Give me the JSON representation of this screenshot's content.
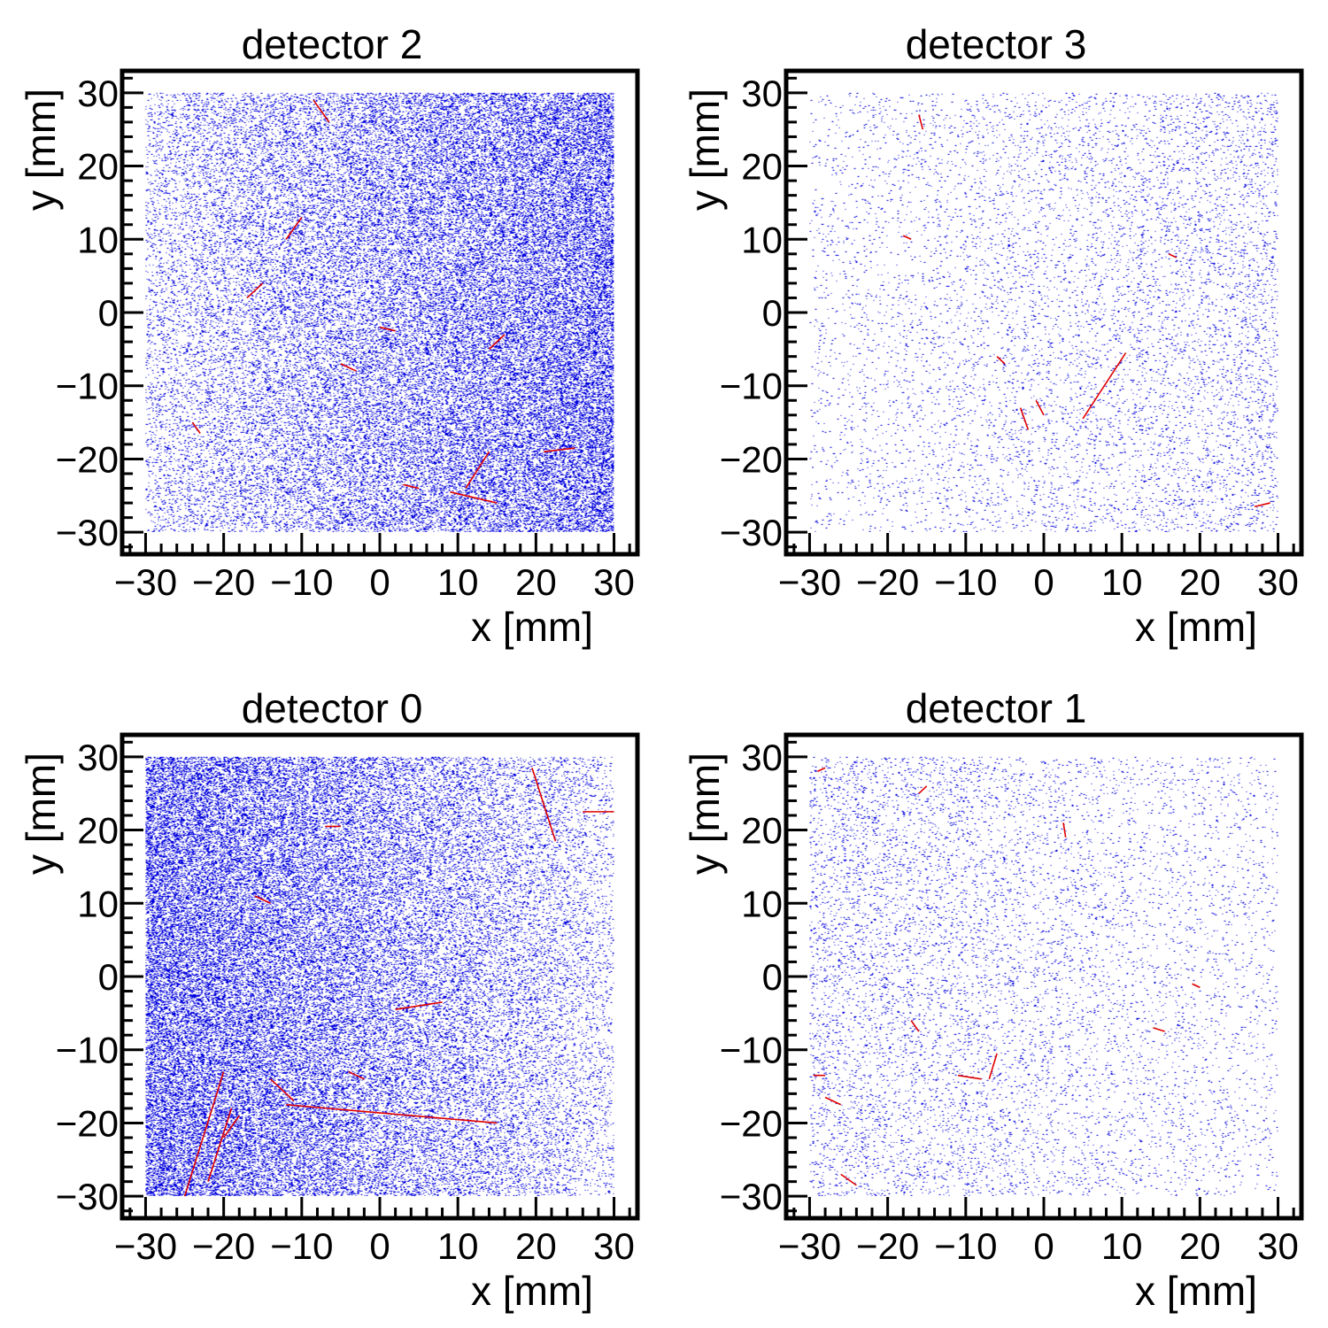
{
  "figure": {
    "background": "#ffffff",
    "axis_color": "#000000"
  },
  "chart_data": [
    {
      "type": "scatter",
      "title": "detector 2",
      "xlabel": "x [mm]",
      "ylabel": "y [mm]",
      "xlim": [
        -33,
        33
      ],
      "ylim": [
        -33,
        33
      ],
      "xticks": [
        -30,
        -20,
        -10,
        0,
        10,
        20,
        30
      ],
      "yticks": [
        -30,
        -20,
        -10,
        0,
        10,
        20,
        30
      ],
      "tick_labels": [
        "−30",
        "−20",
        "−10",
        "0",
        "10",
        "20",
        "30"
      ],
      "grid": false,
      "hit_region": {
        "x": [
          -30,
          30
        ],
        "y": [
          -30,
          30
        ]
      },
      "hit_color": "#0000dd",
      "track_color": "#e00000",
      "hit_density": {
        "description": "increasing toward +x",
        "left": 0.12,
        "right": 0.55
      },
      "tracks": [
        {
          "x": [
            -8.5,
            -6.5
          ],
          "y": [
            29,
            26
          ]
        },
        {
          "x": [
            -12,
            -10
          ],
          "y": [
            10,
            13
          ]
        },
        {
          "x": [
            -17,
            -15
          ],
          "y": [
            2,
            4
          ]
        },
        {
          "x": [
            -24,
            -23
          ],
          "y": [
            -15,
            -16.5
          ]
        },
        {
          "x": [
            11,
            14
          ],
          "y": [
            -24,
            -19
          ]
        },
        {
          "x": [
            9,
            15
          ],
          "y": [
            -24.5,
            -26
          ]
        },
        {
          "x": [
            3,
            5
          ],
          "y": [
            -23.5,
            -24
          ]
        },
        {
          "x": [
            14,
            16
          ],
          "y": [
            -5,
            -3
          ]
        },
        {
          "x": [
            0,
            2
          ],
          "y": [
            -2,
            -2.5
          ]
        },
        {
          "x": [
            21,
            25
          ],
          "y": [
            -19,
            -18.5
          ]
        },
        {
          "x": [
            -5,
            -3
          ],
          "y": [
            -7,
            -8
          ]
        }
      ]
    },
    {
      "type": "scatter",
      "title": "detector 3",
      "xlabel": "x [mm]",
      "ylabel": "y [mm]",
      "xlim": [
        -33,
        33
      ],
      "ylim": [
        -33,
        33
      ],
      "xticks": [
        -30,
        -20,
        -10,
        0,
        10,
        20,
        30
      ],
      "yticks": [
        -30,
        -20,
        -10,
        0,
        10,
        20,
        30
      ],
      "tick_labels": [
        "−30",
        "−20",
        "−10",
        "0",
        "10",
        "20",
        "30"
      ],
      "grid": false,
      "hit_region": {
        "x": [
          -30,
          30
        ],
        "y": [
          -30,
          30
        ]
      },
      "hit_color": "#0000dd",
      "track_color": "#e00000",
      "hit_density": {
        "description": "sparse, slightly denser toward +x",
        "left": 0.03,
        "right": 0.08
      },
      "tracks": [
        {
          "x": [
            5,
            10.5
          ],
          "y": [
            -14.5,
            -5.5
          ]
        },
        {
          "x": [
            -16,
            -15.5
          ],
          "y": [
            27,
            25
          ]
        },
        {
          "x": [
            -3,
            -2
          ],
          "y": [
            -13,
            -16
          ]
        },
        {
          "x": [
            -1,
            0
          ],
          "y": [
            -12,
            -14
          ]
        },
        {
          "x": [
            -18,
            -17
          ],
          "y": [
            10.5,
            10
          ]
        },
        {
          "x": [
            27,
            29
          ],
          "y": [
            -26.5,
            -26
          ]
        },
        {
          "x": [
            16,
            17
          ],
          "y": [
            8,
            7.5
          ]
        },
        {
          "x": [
            -6,
            -5
          ],
          "y": [
            -6,
            -7
          ]
        }
      ]
    },
    {
      "type": "scatter",
      "title": "detector 0",
      "xlabel": "x [mm]",
      "ylabel": "y [mm]",
      "xlim": [
        -33,
        33
      ],
      "ylim": [
        -33,
        33
      ],
      "xticks": [
        -30,
        -20,
        -10,
        0,
        10,
        20,
        30
      ],
      "yticks": [
        -30,
        -20,
        -10,
        0,
        10,
        20,
        30
      ],
      "tick_labels": [
        "−30",
        "−20",
        "−10",
        "0",
        "10",
        "20",
        "30"
      ],
      "grid": false,
      "hit_region": {
        "x": [
          -30,
          30
        ],
        "y": [
          -30,
          30
        ]
      },
      "hit_color": "#0000dd",
      "track_color": "#e00000",
      "hit_density": {
        "description": "increasing toward -x",
        "left": 0.6,
        "right": 0.1
      },
      "tracks": [
        {
          "x": [
            -12,
            15
          ],
          "y": [
            -17.5,
            -20
          ]
        },
        {
          "x": [
            19.5,
            22.5
          ],
          "y": [
            28.5,
            18.5
          ]
        },
        {
          "x": [
            -25,
            -20
          ],
          "y": [
            -30,
            -13
          ]
        },
        {
          "x": [
            -14,
            -11
          ],
          "y": [
            -14,
            -17
          ]
        },
        {
          "x": [
            2,
            8
          ],
          "y": [
            -4.5,
            -3.5
          ]
        },
        {
          "x": [
            -22,
            -19
          ],
          "y": [
            -28,
            -18
          ]
        },
        {
          "x": [
            26,
            30
          ],
          "y": [
            22.5,
            22.5
          ]
        },
        {
          "x": [
            -7,
            -5
          ],
          "y": [
            20.5,
            20.5
          ]
        },
        {
          "x": [
            -16,
            -14
          ],
          "y": [
            11,
            10
          ]
        },
        {
          "x": [
            -4,
            -2
          ],
          "y": [
            -13,
            -14
          ]
        },
        {
          "x": [
            -20,
            -18
          ],
          "y": [
            -22,
            -19
          ]
        }
      ]
    },
    {
      "type": "scatter",
      "title": "detector 1",
      "xlabel": "x [mm]",
      "ylabel": "y [mm]",
      "xlim": [
        -33,
        33
      ],
      "ylim": [
        -33,
        33
      ],
      "xticks": [
        -30,
        -20,
        -10,
        0,
        10,
        20,
        30
      ],
      "yticks": [
        -30,
        -20,
        -10,
        0,
        10,
        20,
        30
      ],
      "tick_labels": [
        "−30",
        "−20",
        "−10",
        "0",
        "10",
        "20",
        "30"
      ],
      "grid": false,
      "hit_region": {
        "x": [
          -30,
          30
        ],
        "y": [
          -30,
          30
        ]
      },
      "hit_color": "#0000dd",
      "track_color": "#e00000",
      "hit_density": {
        "description": "sparse, slightly denser toward -x",
        "left": 0.09,
        "right": 0.03
      },
      "tracks": [
        {
          "x": [
            -7,
            -6
          ],
          "y": [
            -14,
            -10.5
          ]
        },
        {
          "x": [
            -11,
            -8
          ],
          "y": [
            -13.5,
            -14
          ]
        },
        {
          "x": [
            -29.5,
            -28
          ],
          "y": [
            -13.5,
            -13.5
          ]
        },
        {
          "x": [
            2.5,
            2.8
          ],
          "y": [
            21,
            19
          ]
        },
        {
          "x": [
            14,
            15.5
          ],
          "y": [
            -7,
            -7.5
          ]
        },
        {
          "x": [
            -28,
            -26
          ],
          "y": [
            -16.5,
            -17.5
          ]
        },
        {
          "x": [
            -17,
            -16
          ],
          "y": [
            -6,
            -7.5
          ]
        },
        {
          "x": [
            -29,
            -28
          ],
          "y": [
            28,
            28.5
          ]
        },
        {
          "x": [
            -16,
            -15
          ],
          "y": [
            25,
            26
          ]
        },
        {
          "x": [
            19,
            20
          ],
          "y": [
            -1,
            -1.5
          ]
        },
        {
          "x": [
            -26,
            -24
          ],
          "y": [
            -27,
            -28.5
          ]
        }
      ]
    }
  ]
}
